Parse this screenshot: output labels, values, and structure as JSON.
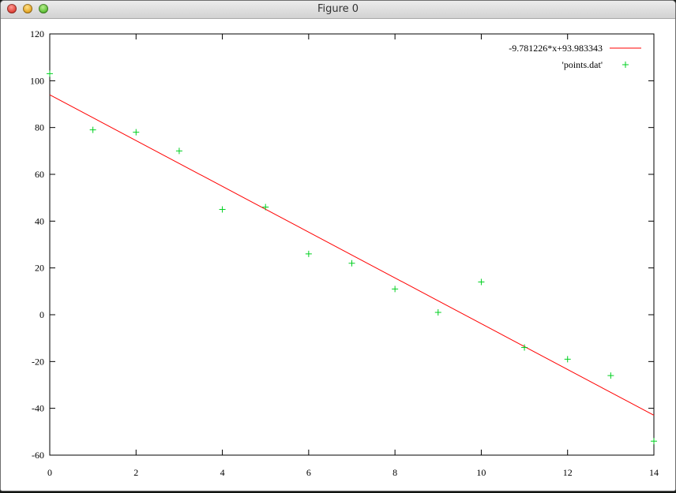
{
  "window": {
    "title": "Figure 0"
  },
  "chart_data": {
    "type": "scatter",
    "title": "",
    "xlabel": "",
    "ylabel": "",
    "xlim": [
      0,
      14
    ],
    "ylim": [
      -60,
      120
    ],
    "xticks": [
      0,
      2,
      4,
      6,
      8,
      10,
      12,
      14
    ],
    "yticks": [
      -60,
      -40,
      -20,
      0,
      20,
      40,
      60,
      80,
      100,
      120
    ],
    "grid": false,
    "legend_position": "top-right",
    "series": [
      {
        "name": "-9.781226*x+93.983343",
        "kind": "line",
        "color": "#ff0000",
        "slope": -9.781226,
        "intercept": 93.983343,
        "x": [
          0,
          14
        ],
        "y": [
          93.983343,
          -42.953821
        ]
      },
      {
        "name": "'points.dat'",
        "kind": "points",
        "color": "#00d020",
        "marker": "plus",
        "x": [
          0,
          1,
          2,
          3,
          4,
          5,
          6,
          7,
          8,
          9,
          10,
          11,
          12,
          13,
          14
        ],
        "y": [
          103,
          79,
          78,
          70,
          45,
          46,
          26,
          22,
          11,
          1,
          14,
          -14,
          -19,
          -26,
          -54
        ]
      }
    ]
  }
}
